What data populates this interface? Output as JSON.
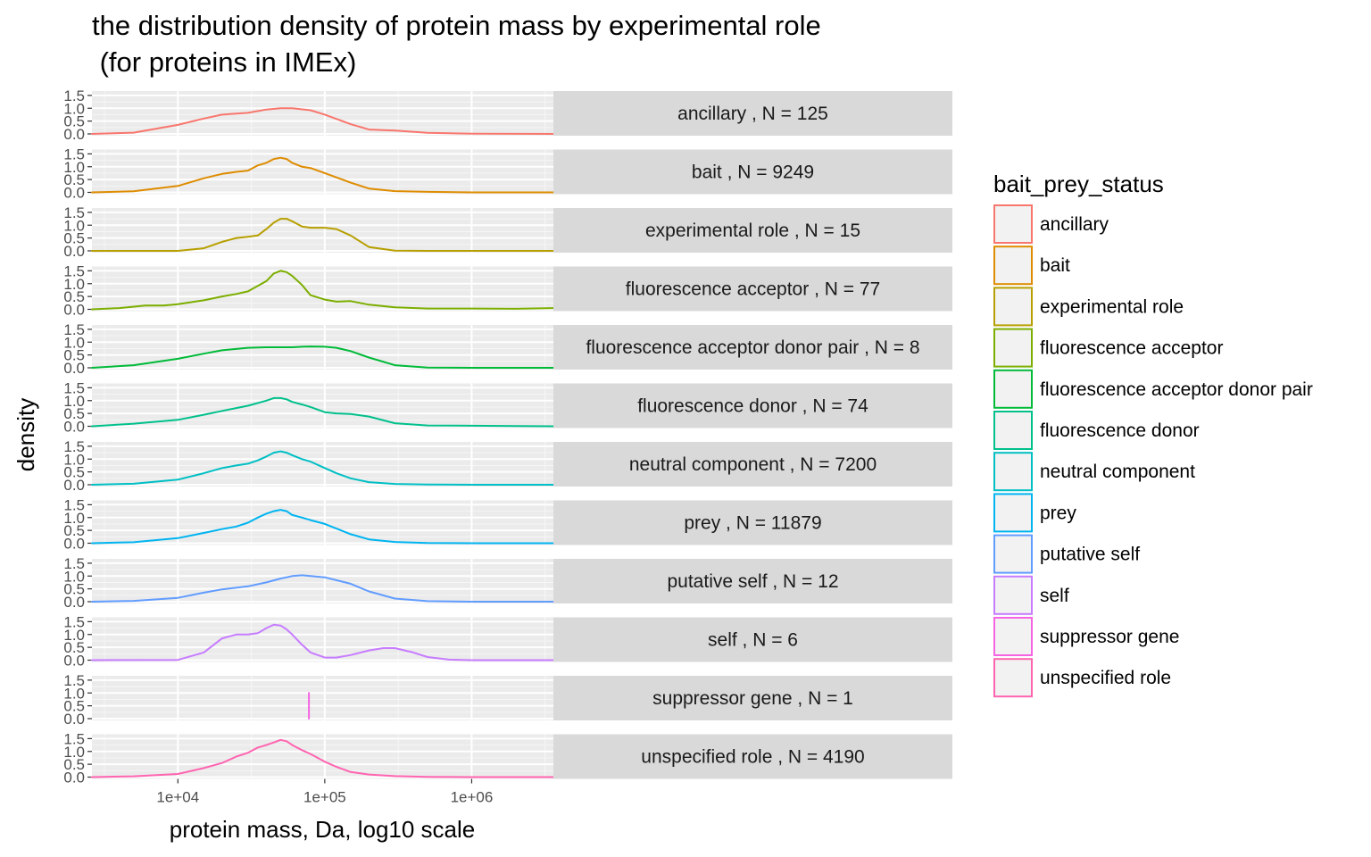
{
  "chart_data": {
    "type": "line",
    "title_line1": "the distribution density of protein mass by experimental role",
    "title_line2": " (for proteins in IMEx)",
    "xlabel": "protein mass, Da, log10 scale",
    "ylabel": "density",
    "x_scale": "log10",
    "xlim": [
      2600,
      3600000
    ],
    "ylim": [
      0,
      1.6
    ],
    "x_ticks": [
      {
        "value": 10000,
        "label": "1e+04"
      },
      {
        "value": 100000,
        "label": "1e+05"
      },
      {
        "value": 1000000,
        "label": "1e+06"
      }
    ],
    "y_ticks": [
      {
        "value": 0.0,
        "label": "0.0"
      },
      {
        "value": 0.5,
        "label": "0.5"
      },
      {
        "value": 1.0,
        "label": "1.0"
      },
      {
        "value": 1.5,
        "label": "1.5"
      }
    ],
    "grid": true,
    "legend": {
      "title": "bait_prey_status",
      "placement": "right"
    },
    "series": [
      {
        "name": "ancillary",
        "strip": "ancillary , N = 125",
        "color": "#F8766D",
        "x": [
          2600,
          5000,
          10000,
          15000,
          20000,
          30000,
          40000,
          50000,
          60000,
          80000,
          100000,
          150000,
          200000,
          300000,
          500000,
          1000000,
          3600000
        ],
        "y": [
          0,
          0.05,
          0.35,
          0.6,
          0.75,
          0.82,
          0.95,
          1.0,
          1.0,
          0.92,
          0.75,
          0.38,
          0.17,
          0.13,
          0.04,
          0.01,
          0
        ]
      },
      {
        "name": "bait",
        "strip": "bait , N = 9249",
        "color": "#DE8C00",
        "x": [
          2600,
          5000,
          10000,
          15000,
          20000,
          25000,
          30000,
          35000,
          40000,
          45000,
          50000,
          55000,
          60000,
          70000,
          80000,
          100000,
          150000,
          200000,
          300000,
          500000,
          1000000,
          3600000
        ],
        "y": [
          0,
          0.04,
          0.25,
          0.55,
          0.72,
          0.8,
          0.85,
          1.05,
          1.15,
          1.3,
          1.35,
          1.3,
          1.15,
          1.0,
          0.95,
          0.75,
          0.38,
          0.15,
          0.05,
          0.02,
          0,
          0
        ]
      },
      {
        "name": "experimental role",
        "strip": "experimental role , N = 15",
        "color": "#B79F00",
        "x": [
          2600,
          10000,
          15000,
          20000,
          25000,
          30000,
          35000,
          40000,
          45000,
          50000,
          55000,
          60000,
          70000,
          80000,
          90000,
          100000,
          120000,
          150000,
          200000,
          300000,
          500000,
          3600000
        ],
        "y": [
          0,
          0,
          0.1,
          0.35,
          0.5,
          0.55,
          0.6,
          0.85,
          1.1,
          1.25,
          1.25,
          1.15,
          0.95,
          0.9,
          0.9,
          0.9,
          0.85,
          0.6,
          0.15,
          0.01,
          0,
          0
        ]
      },
      {
        "name": "fluorescence acceptor",
        "strip": "fluorescence acceptor , N = 77",
        "color": "#7CAE00",
        "x": [
          2600,
          4000,
          6000,
          8000,
          10000,
          15000,
          20000,
          25000,
          30000,
          40000,
          45000,
          50000,
          55000,
          60000,
          70000,
          80000,
          100000,
          120000,
          150000,
          200000,
          300000,
          500000,
          1000000,
          2000000,
          3600000
        ],
        "y": [
          0,
          0.05,
          0.15,
          0.15,
          0.2,
          0.35,
          0.5,
          0.6,
          0.7,
          1.1,
          1.4,
          1.5,
          1.45,
          1.3,
          0.95,
          0.55,
          0.38,
          0.3,
          0.32,
          0.18,
          0.08,
          0.03,
          0.03,
          0.02,
          0.05
        ]
      },
      {
        "name": "fluorescence acceptor donor pair",
        "strip": "fluorescence acceptor donor pair , N = 8",
        "color": "#00BA38",
        "x": [
          2600,
          5000,
          10000,
          15000,
          20000,
          30000,
          40000,
          50000,
          60000,
          70000,
          80000,
          100000,
          120000,
          150000,
          200000,
          300000,
          500000,
          1000000,
          3600000
        ],
        "y": [
          0,
          0.1,
          0.35,
          0.55,
          0.68,
          0.78,
          0.8,
          0.8,
          0.8,
          0.82,
          0.83,
          0.82,
          0.78,
          0.65,
          0.4,
          0.1,
          0.01,
          0,
          0
        ]
      },
      {
        "name": "fluorescence donor",
        "strip": "fluorescence donor , N = 74",
        "color": "#00C08B",
        "x": [
          2600,
          5000,
          10000,
          15000,
          20000,
          30000,
          40000,
          45000,
          50000,
          55000,
          60000,
          70000,
          80000,
          100000,
          120000,
          150000,
          200000,
          300000,
          500000,
          1000000,
          2000000,
          3600000
        ],
        "y": [
          0,
          0.1,
          0.25,
          0.45,
          0.6,
          0.8,
          1.0,
          1.1,
          1.1,
          1.05,
          0.95,
          0.85,
          0.75,
          0.55,
          0.5,
          0.48,
          0.38,
          0.12,
          0.03,
          0.02,
          0.01,
          0
        ]
      },
      {
        "name": "neutral component",
        "strip": "neutral component , N = 7200",
        "color": "#00BFC4",
        "x": [
          2600,
          5000,
          10000,
          15000,
          20000,
          25000,
          30000,
          35000,
          40000,
          45000,
          50000,
          55000,
          60000,
          70000,
          80000,
          100000,
          120000,
          150000,
          200000,
          300000,
          500000,
          1000000,
          3600000
        ],
        "y": [
          0,
          0.04,
          0.2,
          0.45,
          0.65,
          0.75,
          0.82,
          0.95,
          1.1,
          1.25,
          1.3,
          1.25,
          1.15,
          1.0,
          0.9,
          0.65,
          0.45,
          0.25,
          0.1,
          0.03,
          0.01,
          0,
          0
        ]
      },
      {
        "name": "prey",
        "strip": "prey , N = 11879",
        "color": "#00B4F0",
        "x": [
          2600,
          5000,
          10000,
          15000,
          20000,
          25000,
          30000,
          35000,
          40000,
          45000,
          50000,
          55000,
          60000,
          70000,
          80000,
          100000,
          150000,
          200000,
          300000,
          500000,
          1000000,
          3600000
        ],
        "y": [
          0,
          0.04,
          0.2,
          0.4,
          0.55,
          0.65,
          0.8,
          1.0,
          1.15,
          1.25,
          1.3,
          1.25,
          1.1,
          1.0,
          0.9,
          0.75,
          0.35,
          0.15,
          0.05,
          0.01,
          0,
          0
        ]
      },
      {
        "name": "putative self",
        "strip": "putative self , N = 12",
        "color": "#619CFF",
        "x": [
          2600,
          5000,
          10000,
          15000,
          20000,
          30000,
          40000,
          50000,
          60000,
          70000,
          80000,
          100000,
          150000,
          200000,
          300000,
          500000,
          1000000,
          3600000
        ],
        "y": [
          0,
          0.03,
          0.15,
          0.35,
          0.48,
          0.6,
          0.75,
          0.9,
          1.0,
          1.03,
          1.0,
          0.95,
          0.7,
          0.4,
          0.12,
          0.02,
          0,
          0
        ]
      },
      {
        "name": "self",
        "strip": "self , N = 6",
        "color": "#C77CFF",
        "x": [
          2600,
          10000,
          15000,
          20000,
          25000,
          30000,
          35000,
          40000,
          45000,
          50000,
          55000,
          60000,
          70000,
          80000,
          100000,
          120000,
          150000,
          200000,
          250000,
          300000,
          400000,
          500000,
          700000,
          1000000,
          3600000
        ],
        "y": [
          0,
          0.01,
          0.3,
          0.85,
          1.0,
          1.0,
          1.05,
          1.25,
          1.38,
          1.35,
          1.2,
          1.0,
          0.6,
          0.3,
          0.1,
          0.1,
          0.2,
          0.38,
          0.47,
          0.47,
          0.3,
          0.12,
          0.02,
          0,
          0
        ]
      },
      {
        "name": "suppressor gene",
        "strip": "suppressor gene , N = 1",
        "color": "#F564E3",
        "x": [
          78000,
          78000
        ],
        "y": [
          0,
          1.0
        ],
        "segment": true
      },
      {
        "name": "unspecified role",
        "strip": "unspecified role , N = 4190",
        "color": "#FF64B0",
        "x": [
          2600,
          5000,
          10000,
          15000,
          20000,
          25000,
          30000,
          35000,
          40000,
          45000,
          50000,
          55000,
          60000,
          70000,
          80000,
          100000,
          120000,
          150000,
          200000,
          300000,
          500000,
          1000000,
          3600000
        ],
        "y": [
          0,
          0.03,
          0.12,
          0.35,
          0.55,
          0.8,
          0.95,
          1.15,
          1.25,
          1.35,
          1.45,
          1.4,
          1.25,
          1.05,
          0.9,
          0.6,
          0.4,
          0.2,
          0.1,
          0.04,
          0.01,
          0,
          0
        ]
      }
    ]
  }
}
